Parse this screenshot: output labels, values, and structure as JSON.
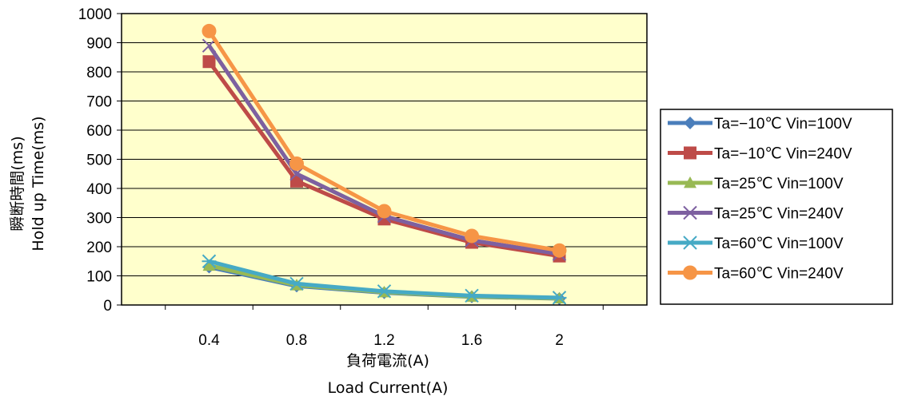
{
  "chart_data": {
    "type": "line",
    "categories": [
      "0.4",
      "0.8",
      "1.2",
      "1.6",
      "2"
    ],
    "xlabel": "負荷電流(A)",
    "xlabel_en": "Load Current(A)",
    "ylabel": "瞬断時間(ms)",
    "ylabel_en": "Hold up Time(ms)",
    "ylim": [
      0,
      1000
    ],
    "yticks": [
      "0",
      "100",
      "200",
      "300",
      "400",
      "500",
      "600",
      "700",
      "800",
      "900",
      "1000"
    ],
    "grid": true,
    "legend_position": "right",
    "plot_background": "#ffffcc",
    "series": [
      {
        "name": "Ta=−10℃ Vin=100V",
        "color": "#4a7ebb",
        "marker": "diamond",
        "values": [
          130,
          65,
          42,
          28,
          22
        ]
      },
      {
        "name": "Ta=−10℃ Vin=240V",
        "color": "#be4b48",
        "marker": "square",
        "values": [
          835,
          425,
          295,
          215,
          168
        ]
      },
      {
        "name": "Ta=25℃ Vin=100V",
        "color": "#98b954",
        "marker": "triangle",
        "values": [
          135,
          68,
          44,
          29,
          23
        ]
      },
      {
        "name": "Ta=25℃ Vin=240V",
        "color": "#7d60a0",
        "marker": "x",
        "values": [
          890,
          450,
          305,
          222,
          175
        ]
      },
      {
        "name": "Ta=60℃ Vin=100V",
        "color": "#46aac5",
        "marker": "star",
        "values": [
          150,
          73,
          47,
          32,
          25
        ]
      },
      {
        "name": "Ta=60℃ Vin=240V",
        "color": "#f69546",
        "marker": "circle",
        "values": [
          940,
          485,
          322,
          237,
          187
        ]
      }
    ]
  }
}
